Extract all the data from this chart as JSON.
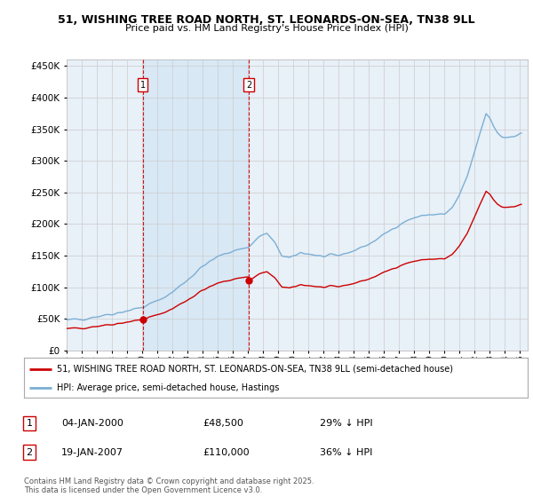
{
  "title1": "51, WISHING TREE ROAD NORTH, ST. LEONARDS-ON-SEA, TN38 9LL",
  "title2": "Price paid vs. HM Land Registry's House Price Index (HPI)",
  "legend1": "51, WISHING TREE ROAD NORTH, ST. LEONARDS-ON-SEA, TN38 9LL (semi-detached house)",
  "legend2": "HPI: Average price, semi-detached house, Hastings",
  "footer": "Contains HM Land Registry data © Crown copyright and database right 2025.\nThis data is licensed under the Open Government Licence v3.0.",
  "sale1_date": "04-JAN-2000",
  "sale1_price": "£48,500",
  "sale1_hpi": "29% ↓ HPI",
  "sale2_date": "19-JAN-2007",
  "sale2_price": "£110,000",
  "sale2_hpi": "36% ↓ HPI",
  "color_property": "#cc0000",
  "color_hpi": "#7bafd4",
  "color_vline": "#cc0000",
  "color_grid": "#cccccc",
  "color_bg": "#e8f0f8",
  "color_shade": "#d0e4f4",
  "ylim": [
    0,
    460000
  ],
  "yticks": [
    0,
    50000,
    100000,
    150000,
    200000,
    250000,
    300000,
    350000,
    400000,
    450000
  ],
  "sale1_x": 2000.03,
  "sale2_x": 2007.05,
  "xlim_start": 1995,
  "xlim_end": 2025.5
}
